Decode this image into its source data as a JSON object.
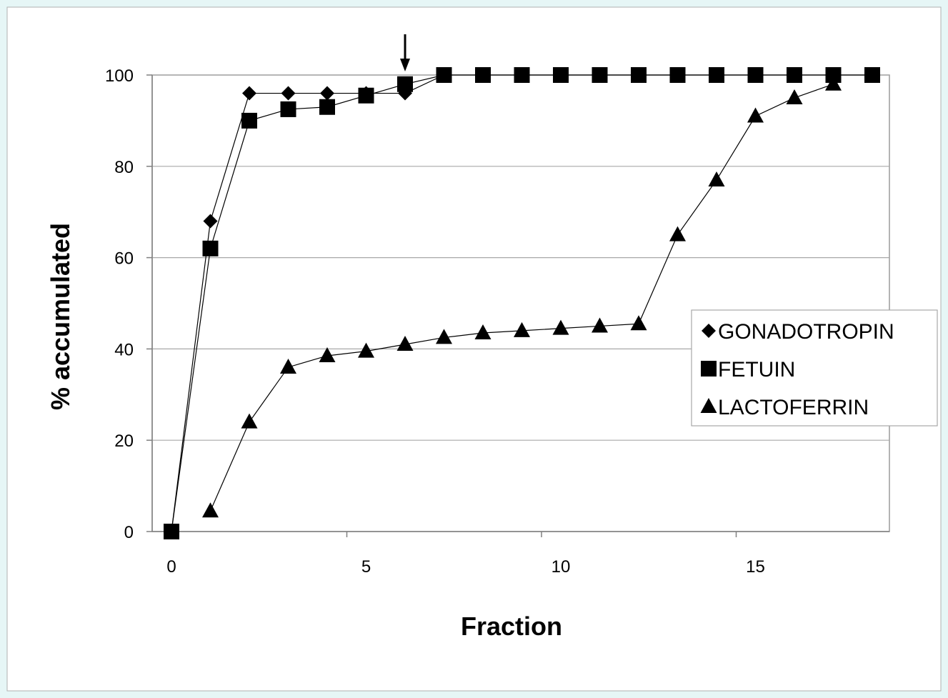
{
  "chart_data": {
    "type": "line",
    "title": "",
    "xlabel": "Fraction",
    "ylabel": "%  accumulated",
    "xlim": [
      0,
      18.5
    ],
    "ylim": [
      0,
      100
    ],
    "x_ticks": [
      0,
      5,
      10,
      15
    ],
    "y_ticks": [
      0,
      20,
      40,
      60,
      80,
      100
    ],
    "grid": "horizontal",
    "legend_placement": "right",
    "annotation": "arrow pointing down at fraction 6",
    "line_color": "#000000",
    "series": [
      {
        "name": "GONADOTROPIN",
        "marker": "diamond",
        "x": [
          0,
          1,
          2,
          3,
          4,
          5,
          6,
          7
        ],
        "values": [
          0,
          68,
          96,
          96,
          96,
          96,
          96,
          100
        ]
      },
      {
        "name": "FETUIN",
        "marker": "square",
        "x": [
          0,
          1,
          2,
          3,
          4,
          5,
          6,
          7,
          8,
          9,
          10,
          11,
          12,
          13,
          14,
          15,
          16,
          17,
          18
        ],
        "values": [
          0,
          62,
          90,
          92.5,
          93,
          95.5,
          98,
          100,
          100,
          100,
          100,
          100,
          100,
          100,
          100,
          100,
          100,
          100,
          100
        ]
      },
      {
        "name": "LACTOFERRIN",
        "marker": "triangle",
        "x": [
          1,
          2,
          3,
          4,
          5,
          6,
          7,
          8,
          9,
          10,
          11,
          12,
          13,
          14,
          15,
          16,
          17
        ],
        "values": [
          4.5,
          24,
          36,
          38.5,
          39.5,
          41,
          42.5,
          43.5,
          44,
          44.5,
          45,
          45.5,
          65,
          77,
          91,
          95,
          98
        ]
      }
    ]
  }
}
